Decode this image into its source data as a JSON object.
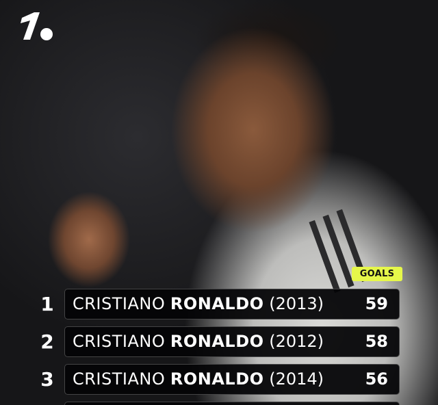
{
  "brand": {
    "logo": "1."
  },
  "badge": {
    "label": "GOALS",
    "color": "#e6f74a"
  },
  "rows": [
    {
      "rank": "1",
      "first": "CRISTIANO",
      "last": "RONALDO",
      "year": "(2013)",
      "goals": "59"
    },
    {
      "rank": "2",
      "first": "CRISTIANO",
      "last": "RONALDO",
      "year": "(2012)",
      "goals": "58"
    },
    {
      "rank": "3",
      "first": "CRISTIANO",
      "last": "RONALDO",
      "year": "(2014)",
      "goals": "56"
    }
  ]
}
